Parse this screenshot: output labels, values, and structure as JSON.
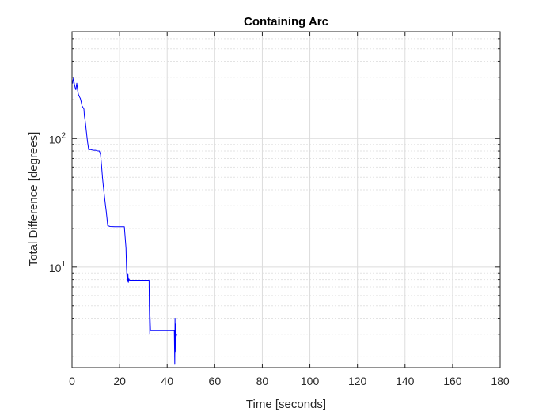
{
  "chart_data": {
    "type": "line",
    "title": "Containing Arc",
    "xlabel": "Time [seconds]",
    "ylabel": "Total Difference [degrees]",
    "xlim": [
      0,
      180
    ],
    "ylim": [
      1.65,
      680
    ],
    "yscale": "log",
    "grid": true,
    "minor_grid": true,
    "x_ticks": [
      0,
      20,
      40,
      60,
      80,
      100,
      120,
      140,
      160,
      180
    ],
    "x_tick_labels": [
      "0",
      "20",
      "40",
      "60",
      "80",
      "100",
      "120",
      "140",
      "160",
      "180"
    ],
    "y_ticks": [
      10,
      100
    ],
    "y_tick_labels": [
      {
        "base": "10",
        "exp": "1"
      },
      {
        "base": "10",
        "exp": "2"
      }
    ],
    "series_color": "#0000ff",
    "series": [
      {
        "x": [
          0.0,
          0.3,
          0.6,
          1.0,
          1.3,
          1.6,
          2.0,
          2.4,
          2.7,
          3.0,
          3.2,
          3.5,
          3.8,
          4.2,
          4.6,
          5.0,
          5.2,
          5.6,
          6.0,
          6.5,
          7.0,
          8.0,
          9.0,
          10.0,
          11.0,
          11.5,
          12.0,
          12.4,
          12.8,
          13.2,
          13.6,
          14.0,
          14.4,
          14.7,
          15.0,
          16.0,
          18.0,
          20.0,
          22.0,
          22.7,
          22.9,
          23.1,
          23.3,
          23.5,
          23.7,
          23.9,
          24.2,
          25.0,
          27.0,
          30.0,
          32.4,
          32.5,
          32.6,
          32.7,
          32.8,
          33.0,
          33.5,
          35.0,
          38.0,
          42.0,
          43.0,
          43.1,
          43.2,
          43.3,
          43.4,
          43.5,
          43.6,
          43.7,
          43.8,
          44.0
        ],
        "y": [
          290,
          270,
          295,
          265,
          250,
          240,
          270,
          235,
          220,
          215,
          210,
          205,
          195,
          180,
          175,
          170,
          150,
          135,
          115,
          95,
          82,
          82,
          81,
          81,
          80,
          80,
          75,
          62,
          50,
          42,
          36,
          31,
          27,
          24,
          21,
          20.7,
          20.6,
          20.6,
          20.6,
          14,
          10,
          8.5,
          7.7,
          8.9,
          7.6,
          8.1,
          7.9,
          7.9,
          7.9,
          7.9,
          7.9,
          5.0,
          3.8,
          3.0,
          4.1,
          3.2,
          3.2,
          3.2,
          3.2,
          3.2,
          3.2,
          2.3,
          1.75,
          4.0,
          2.2,
          3.6,
          2.5,
          3.1,
          2.9,
          3.0
        ]
      }
    ]
  }
}
